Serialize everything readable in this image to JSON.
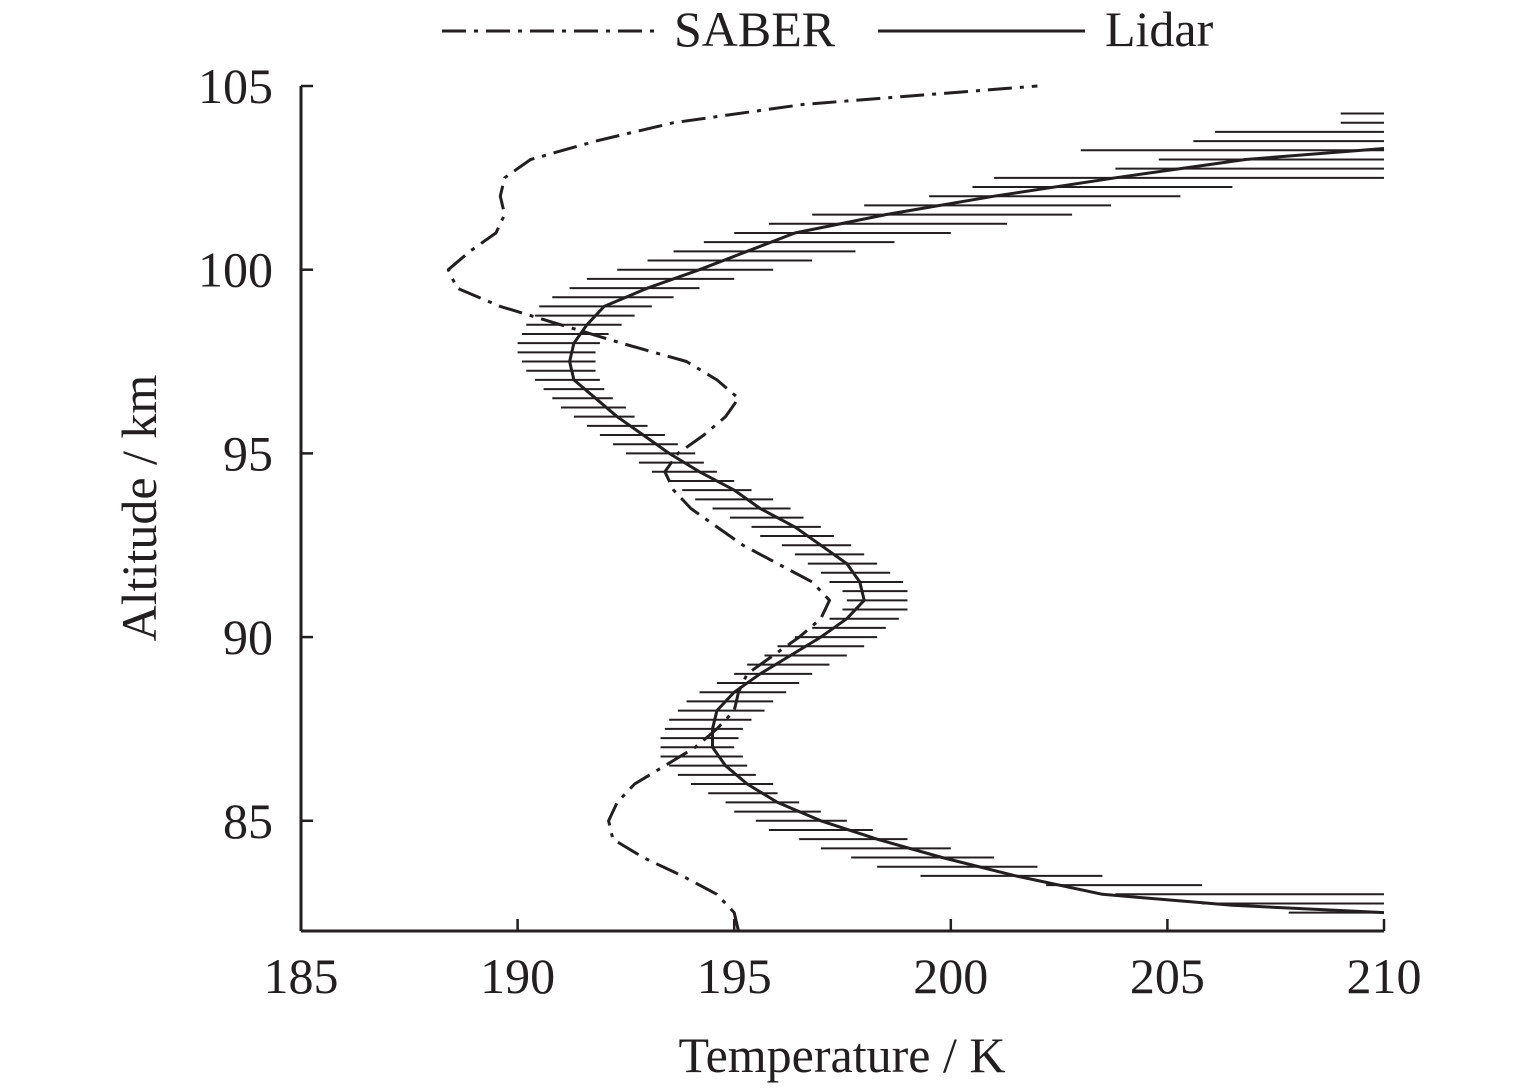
{
  "chart_data": {
    "type": "line",
    "title": "",
    "xlabel": "Temperature / K",
    "ylabel": "Altitude / km",
    "xlim": [
      185,
      210
    ],
    "ylim": [
      82,
      105
    ],
    "x_ticks": [
      "185",
      "190",
      "195",
      "200",
      "205",
      "210"
    ],
    "y_ticks": [
      "85",
      "90",
      "95",
      "100",
      "105"
    ],
    "grid": false,
    "legend_position": "top-center",
    "series": [
      {
        "name": "SABER",
        "style": "dash-dot",
        "color": "#231f20",
        "points": [
          [
            195.1,
            82.0
          ],
          [
            195.0,
            82.5
          ],
          [
            194.6,
            83.0
          ],
          [
            193.8,
            83.5
          ],
          [
            192.9,
            84.0
          ],
          [
            192.2,
            84.5
          ],
          [
            192.1,
            85.0
          ],
          [
            192.3,
            85.5
          ],
          [
            192.7,
            86.0
          ],
          [
            193.4,
            86.5
          ],
          [
            194.1,
            87.0
          ],
          [
            194.6,
            87.5
          ],
          [
            195.0,
            88.0
          ],
          [
            195.1,
            88.5
          ],
          [
            195.3,
            89.0
          ],
          [
            195.9,
            89.5
          ],
          [
            196.5,
            90.0
          ],
          [
            197.0,
            90.5
          ],
          [
            197.2,
            91.0
          ],
          [
            196.8,
            91.5
          ],
          [
            196.0,
            92.0
          ],
          [
            195.2,
            92.5
          ],
          [
            194.6,
            93.0
          ],
          [
            194.0,
            93.5
          ],
          [
            193.6,
            94.0
          ],
          [
            193.4,
            94.5
          ],
          [
            193.7,
            95.0
          ],
          [
            194.3,
            95.5
          ],
          [
            194.8,
            96.0
          ],
          [
            195.1,
            96.5
          ],
          [
            194.6,
            97.0
          ],
          [
            193.9,
            97.5
          ],
          [
            192.4,
            98.0
          ],
          [
            191.0,
            98.5
          ],
          [
            189.6,
            99.0
          ],
          [
            188.6,
            99.5
          ],
          [
            188.4,
            100.0
          ],
          [
            188.9,
            100.5
          ],
          [
            189.5,
            101.0
          ],
          [
            189.7,
            101.5
          ],
          [
            189.6,
            102.0
          ],
          [
            189.7,
            102.5
          ],
          [
            190.3,
            103.0
          ],
          [
            191.8,
            103.5
          ],
          [
            193.6,
            104.0
          ],
          [
            196.6,
            104.5
          ],
          [
            202.0,
            105.0
          ]
        ]
      },
      {
        "name": "Lidar",
        "style": "solid",
        "color": "#231f20",
        "points": [
          [
            210.0,
            82.5
          ],
          [
            206.5,
            82.7
          ],
          [
            203.5,
            83.0
          ],
          [
            201.5,
            83.5
          ],
          [
            199.8,
            84.0
          ],
          [
            198.3,
            84.5
          ],
          [
            197.0,
            85.0
          ],
          [
            196.0,
            85.5
          ],
          [
            195.3,
            86.0
          ],
          [
            194.8,
            86.5
          ],
          [
            194.5,
            87.0
          ],
          [
            194.5,
            87.5
          ],
          [
            194.6,
            88.0
          ],
          [
            195.0,
            88.5
          ],
          [
            195.6,
            89.0
          ],
          [
            196.3,
            89.5
          ],
          [
            197.0,
            90.0
          ],
          [
            197.6,
            90.5
          ],
          [
            198.0,
            91.0
          ],
          [
            197.9,
            91.5
          ],
          [
            197.6,
            92.0
          ],
          [
            197.0,
            92.5
          ],
          [
            196.4,
            93.0
          ],
          [
            195.6,
            93.5
          ],
          [
            195.0,
            94.0
          ],
          [
            194.2,
            94.5
          ],
          [
            193.5,
            95.0
          ],
          [
            192.9,
            95.5
          ],
          [
            192.3,
            96.0
          ],
          [
            191.8,
            96.5
          ],
          [
            191.3,
            97.0
          ],
          [
            191.2,
            97.5
          ],
          [
            191.3,
            98.0
          ],
          [
            191.6,
            98.5
          ],
          [
            192.0,
            99.0
          ],
          [
            193.0,
            99.5
          ],
          [
            194.2,
            100.0
          ],
          [
            195.3,
            100.5
          ],
          [
            196.4,
            101.0
          ],
          [
            198.5,
            101.5
          ],
          [
            201.0,
            102.0
          ],
          [
            203.8,
            102.5
          ],
          [
            206.8,
            103.0
          ],
          [
            210.0,
            103.3
          ]
        ]
      }
    ],
    "error_bars": {
      "series": "Lidar",
      "orientation": "horizontal",
      "bars": [
        [
          82.5,
          207.8,
          210.0
        ],
        [
          82.75,
          205.8,
          210.0
        ],
        [
          83.0,
          203.8,
          210.0
        ],
        [
          83.25,
          202.2,
          205.8
        ],
        [
          83.5,
          199.3,
          203.5
        ],
        [
          83.75,
          198.3,
          202.0
        ],
        [
          84.0,
          197.7,
          201.0
        ],
        [
          84.25,
          197.0,
          200.0
        ],
        [
          84.5,
          196.5,
          199.0
        ],
        [
          84.75,
          195.8,
          198.2
        ],
        [
          85.0,
          195.5,
          197.6
        ],
        [
          85.25,
          195.0,
          197.0
        ],
        [
          85.5,
          194.8,
          196.5
        ],
        [
          85.75,
          194.4,
          196.0
        ],
        [
          86.0,
          194.0,
          195.9
        ],
        [
          86.25,
          193.7,
          195.5
        ],
        [
          86.5,
          193.5,
          195.3
        ],
        [
          86.75,
          193.3,
          195.2
        ],
        [
          87.0,
          193.3,
          195.0
        ],
        [
          87.25,
          193.3,
          195.1
        ],
        [
          87.5,
          193.4,
          195.2
        ],
        [
          87.75,
          193.5,
          195.4
        ],
        [
          88.0,
          193.7,
          195.7
        ],
        [
          88.25,
          193.9,
          195.9
        ],
        [
          88.5,
          194.2,
          196.2
        ],
        [
          88.75,
          194.6,
          196.5
        ],
        [
          89.0,
          195.0,
          196.8
        ],
        [
          89.25,
          195.3,
          197.2
        ],
        [
          89.5,
          195.7,
          197.6
        ],
        [
          89.75,
          196.0,
          198.0
        ],
        [
          90.0,
          196.4,
          198.3
        ],
        [
          90.25,
          196.8,
          198.5
        ],
        [
          90.5,
          197.2,
          198.8
        ],
        [
          90.75,
          197.5,
          199.0
        ],
        [
          91.0,
          197.6,
          199.0
        ],
        [
          91.25,
          197.5,
          199.0
        ],
        [
          91.5,
          197.2,
          198.9
        ],
        [
          91.75,
          197.0,
          198.6
        ],
        [
          92.0,
          196.7,
          198.3
        ],
        [
          92.25,
          196.4,
          198.0
        ],
        [
          92.5,
          196.1,
          197.7
        ],
        [
          92.75,
          195.6,
          197.3
        ],
        [
          93.0,
          195.4,
          197.0
        ],
        [
          93.25,
          194.9,
          196.6
        ],
        [
          93.5,
          194.5,
          196.3
        ],
        [
          93.75,
          194.1,
          195.9
        ],
        [
          94.0,
          193.8,
          195.4
        ],
        [
          94.25,
          193.5,
          195.0
        ],
        [
          94.5,
          193.1,
          194.6
        ],
        [
          94.75,
          192.8,
          194.3
        ],
        [
          95.0,
          192.5,
          194.1
        ],
        [
          95.25,
          192.2,
          193.7
        ],
        [
          95.5,
          191.9,
          193.4
        ],
        [
          95.75,
          191.6,
          193.0
        ],
        [
          96.0,
          191.3,
          192.7
        ],
        [
          96.25,
          191.0,
          192.5
        ],
        [
          96.5,
          190.8,
          192.2
        ],
        [
          96.75,
          190.6,
          192.0
        ],
        [
          97.0,
          190.4,
          191.9
        ],
        [
          97.25,
          190.2,
          191.8
        ],
        [
          97.5,
          190.1,
          191.8
        ],
        [
          97.75,
          190.0,
          191.8
        ],
        [
          98.0,
          190.0,
          191.9
        ],
        [
          98.25,
          190.1,
          192.1
        ],
        [
          98.5,
          190.2,
          192.4
        ],
        [
          98.75,
          190.4,
          192.7
        ],
        [
          99.0,
          190.5,
          193.1
        ],
        [
          99.25,
          190.8,
          193.6
        ],
        [
          99.5,
          191.2,
          194.2
        ],
        [
          99.75,
          191.6,
          195.0
        ],
        [
          100.0,
          192.3,
          195.9
        ],
        [
          100.25,
          193.0,
          196.8
        ],
        [
          100.5,
          193.6,
          197.8
        ],
        [
          100.75,
          194.3,
          198.7
        ],
        [
          101.0,
          195.0,
          200.0
        ],
        [
          101.25,
          195.8,
          201.3
        ],
        [
          101.5,
          196.8,
          202.8
        ],
        [
          101.75,
          198.0,
          203.7
        ],
        [
          102.0,
          199.5,
          205.3
        ],
        [
          102.25,
          200.5,
          206.5
        ],
        [
          102.5,
          201.0,
          210.0
        ],
        [
          102.75,
          203.8,
          210.0
        ],
        [
          103.0,
          204.8,
          210.0
        ],
        [
          103.25,
          203.0,
          210.0
        ],
        [
          103.5,
          205.6,
          210.0
        ],
        [
          103.75,
          206.1,
          210.0
        ],
        [
          104.0,
          209.0,
          210.0
        ],
        [
          104.25,
          209.0,
          210.0
        ]
      ]
    }
  }
}
